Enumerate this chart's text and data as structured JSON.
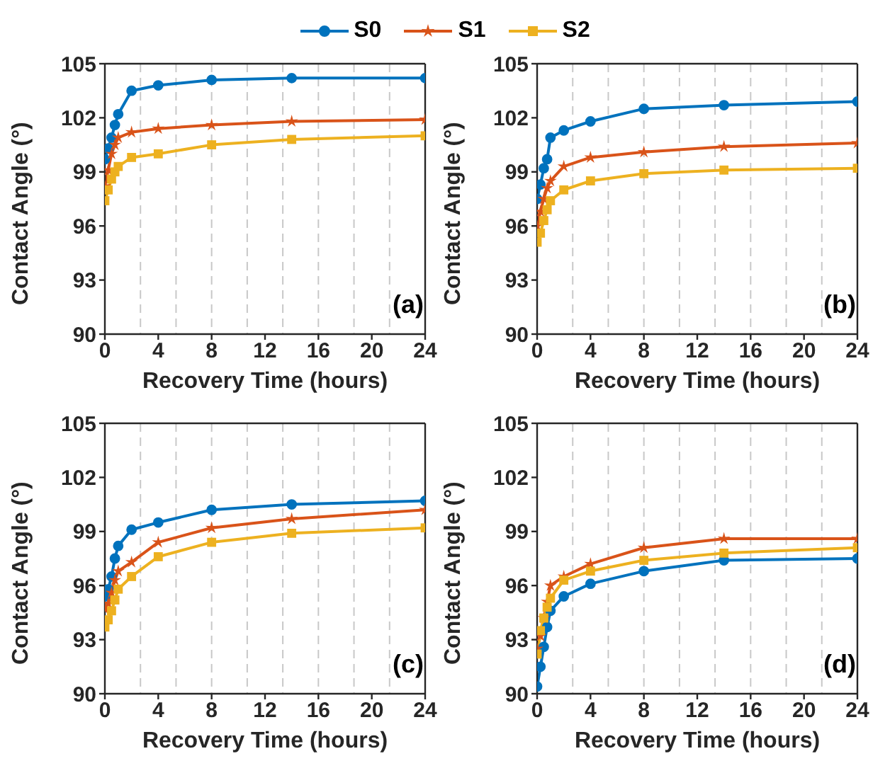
{
  "chart_data": [
    {
      "type": "line",
      "xlabel": "Recovery Time (hours)",
      "ylabel": "Contact Angle (°)",
      "x": [
        0,
        0.25,
        0.5,
        0.75,
        1,
        2,
        4,
        8,
        14,
        24
      ],
      "xlim": [
        0,
        24
      ],
      "xticks": [
        0,
        4,
        8,
        12,
        16,
        20,
        24
      ],
      "ylim": [
        90,
        105
      ],
      "yticks": [
        90,
        93,
        96,
        99,
        102,
        105
      ],
      "grid": true,
      "legend": "top",
      "annotations": [
        "(a)"
      ],
      "series": [
        {
          "name": "S0",
          "color": "#0072bd",
          "marker": "circle",
          "values": [
            99.7,
            100.3,
            100.9,
            101.6,
            102.2,
            103.5,
            103.8,
            104.1,
            104.2,
            104.2
          ]
        },
        {
          "name": "S1",
          "color": "#d95319",
          "marker": "star",
          "values": [
            98.2,
            99.1,
            100.0,
            100.5,
            100.9,
            101.2,
            101.4,
            101.6,
            101.8,
            101.9
          ]
        },
        {
          "name": "S2",
          "color": "#edb120",
          "marker": "square",
          "values": [
            97.4,
            98.0,
            98.6,
            99.0,
            99.3,
            99.8,
            100.0,
            100.5,
            100.8,
            101.0
          ]
        }
      ]
    },
    {
      "type": "line",
      "xlabel": "Recovery Time (hours)",
      "ylabel": "Contact Angle (°)",
      "x": [
        0,
        0.25,
        0.5,
        0.75,
        1,
        2,
        4,
        8,
        14,
        24
      ],
      "xlim": [
        0,
        24
      ],
      "xticks": [
        0,
        4,
        8,
        12,
        16,
        20,
        24
      ],
      "ylim": [
        90,
        105
      ],
      "yticks": [
        90,
        93,
        96,
        99,
        102,
        105
      ],
      "grid": true,
      "annotations": [
        "(b)"
      ],
      "series": [
        {
          "color": "#0072bd",
          "marker": "circle",
          "values": [
            97.5,
            98.3,
            99.2,
            99.7,
            100.9,
            101.3,
            101.8,
            102.5,
            102.7,
            102.9
          ]
        },
        {
          "color": "#d95319",
          "marker": "star",
          "values": [
            96.0,
            96.8,
            97.5,
            98.1,
            98.5,
            99.3,
            99.8,
            100.1,
            100.4,
            100.6
          ]
        },
        {
          "color": "#edb120",
          "marker": "square",
          "values": [
            95.1,
            95.6,
            96.3,
            96.9,
            97.4,
            98.0,
            98.5,
            98.9,
            99.1,
            99.2
          ]
        }
      ]
    },
    {
      "type": "line",
      "xlabel": "Recovery Time (hours)",
      "ylabel": "Contact Angle (°)",
      "x": [
        0,
        0.25,
        0.5,
        0.75,
        1,
        2,
        4,
        8,
        14,
        24
      ],
      "xlim": [
        0,
        24
      ],
      "xticks": [
        0,
        4,
        8,
        12,
        16,
        20,
        24
      ],
      "ylim": [
        90,
        105
      ],
      "yticks": [
        90,
        93,
        96,
        99,
        102,
        105
      ],
      "grid": true,
      "annotations": [
        "(c)"
      ],
      "series": [
        {
          "color": "#0072bd",
          "marker": "circle",
          "values": [
            95.4,
            95.8,
            96.5,
            97.5,
            98.2,
            99.1,
            99.5,
            100.2,
            100.5,
            100.7
          ]
        },
        {
          "color": "#d95319",
          "marker": "star",
          "values": [
            94.7,
            95.0,
            95.6,
            96.3,
            96.8,
            97.3,
            98.4,
            99.2,
            99.7,
            100.2
          ]
        },
        {
          "color": "#edb120",
          "marker": "square",
          "values": [
            93.7,
            94.1,
            94.6,
            95.2,
            95.8,
            96.5,
            97.6,
            98.4,
            98.9,
            99.2
          ]
        }
      ]
    },
    {
      "type": "line",
      "xlabel": "Recovery Time (hours)",
      "ylabel": "Contact Angle (°)",
      "x": [
        0,
        0.25,
        0.5,
        0.75,
        1,
        2,
        4,
        8,
        14,
        24
      ],
      "xlim": [
        0,
        24
      ],
      "xticks": [
        0,
        4,
        8,
        12,
        16,
        20,
        24
      ],
      "ylim": [
        90,
        105
      ],
      "yticks": [
        90,
        93,
        96,
        99,
        102,
        105
      ],
      "grid": true,
      "annotations": [
        "(d)"
      ],
      "series": [
        {
          "color": "#0072bd",
          "marker": "circle",
          "values": [
            90.4,
            91.5,
            92.6,
            93.7,
            94.6,
            95.4,
            96.1,
            96.8,
            97.4,
            97.5
          ]
        },
        {
          "color": "#d95319",
          "marker": "star",
          "values": [
            92.5,
            93.2,
            94.2,
            95.1,
            96.0,
            96.5,
            97.2,
            98.1,
            98.6,
            98.6
          ]
        },
        {
          "color": "#edb120",
          "marker": "square",
          "values": [
            92.2,
            93.5,
            94.2,
            94.8,
            95.3,
            96.3,
            96.8,
            97.4,
            97.8,
            98.1
          ]
        }
      ]
    }
  ]
}
